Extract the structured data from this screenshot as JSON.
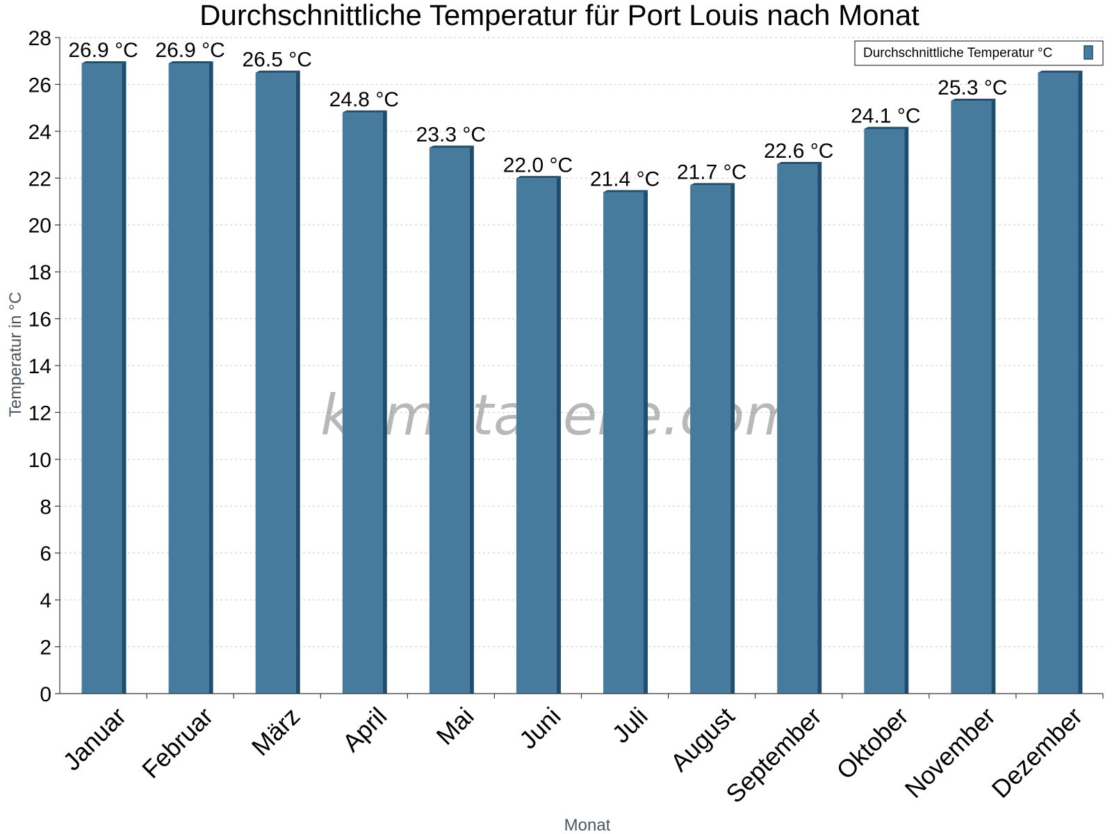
{
  "chart_data": {
    "type": "bar",
    "title": "Durchschnittliche Temperatur für Port Louis nach Monat",
    "xlabel": "Monat",
    "ylabel": "Temperatur in °C",
    "ylim": [
      0,
      28
    ],
    "yticks": [
      0,
      2,
      4,
      6,
      8,
      10,
      12,
      14,
      16,
      18,
      20,
      22,
      24,
      26,
      28
    ],
    "grid": true,
    "legend_position": "top-right",
    "categories": [
      "Januar",
      "Februar",
      "März",
      "April",
      "Mai",
      "Juni",
      "Juli",
      "August",
      "September",
      "Oktober",
      "November",
      "Dezember"
    ],
    "series": [
      {
        "name": "Durchschnittliche Temperatur °C",
        "values": [
          26.9,
          26.9,
          26.5,
          24.8,
          23.3,
          22.0,
          21.4,
          21.7,
          22.6,
          24.1,
          25.3,
          26.5
        ],
        "data_labels": [
          "26.9 °C",
          "26.9 °C",
          "26.5 °C",
          "24.8 °C",
          "23.3 °C",
          "22.0 °C",
          "21.4 °C",
          "21.7 °C",
          "22.6 °C",
          "24.1 °C",
          "25.3 °C",
          ""
        ],
        "color": "#467b9d",
        "side_color": "#1e4d6e"
      }
    ],
    "watermark": "klimatabelle.com"
  }
}
